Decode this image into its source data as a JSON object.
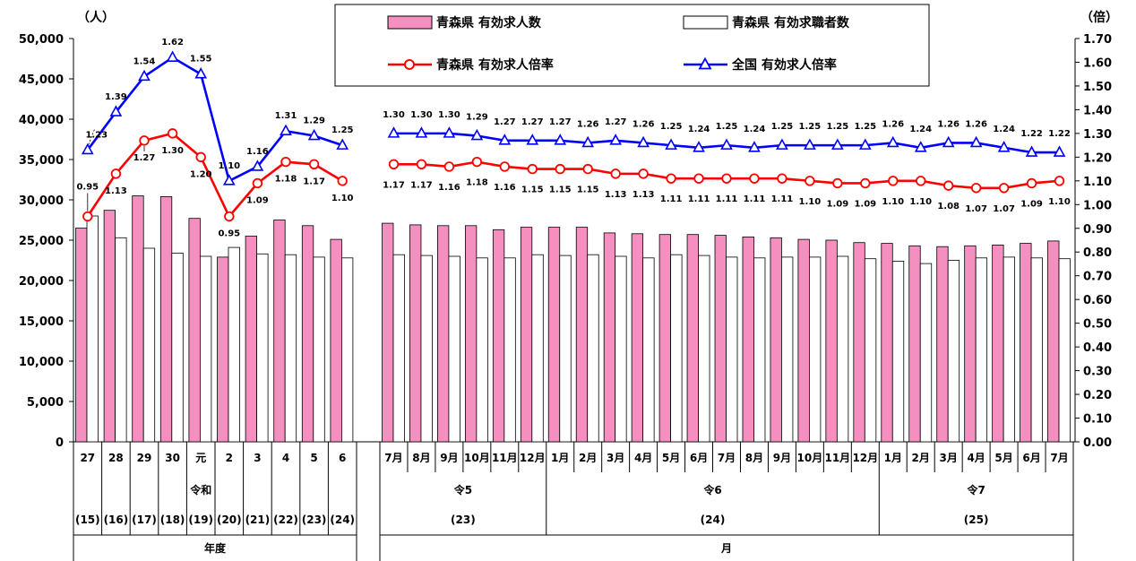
{
  "chart_data": {
    "type": "bar+line",
    "left_axis": {
      "unit": "（人）",
      "min": 0,
      "max": 50000,
      "step": 5000,
      "ticks": [
        "0",
        "5,000",
        "10,000",
        "15,000",
        "20,000",
        "25,000",
        "30,000",
        "35,000",
        "40,000",
        "45,000",
        "50,000"
      ]
    },
    "right_axis": {
      "unit": "（倍）",
      "min": 0,
      "max": 1.7,
      "step": 0.1,
      "ticks": [
        "0.00",
        "0.10",
        "0.20",
        "0.30",
        "0.40",
        "0.50",
        "0.60",
        "0.70",
        "0.80",
        "0.90",
        "1.00",
        "1.10",
        "1.20",
        "1.30",
        "1.40",
        "1.50",
        "1.60",
        "1.70"
      ]
    },
    "legend": {
      "openings": "青森県 有効求人数",
      "seekers": "青森県 有効求職者数",
      "ratio_aomori": "青森県 有効求人倍率",
      "ratio_national": "全国 有効求人倍率"
    },
    "colors": {
      "openings": "#f48fbf",
      "aomori_line": "#ff0000",
      "national_line": "#0000ff"
    },
    "annual": {
      "labels": [
        "27",
        "28",
        "29",
        "30",
        "元",
        "2",
        "3",
        "4",
        "5",
        "6"
      ],
      "eras": [
        "(15)",
        "(16)",
        "(17)",
        "(18)",
        "(19)",
        "(20)",
        "(21)",
        "(22)",
        "(23)",
        "(24)"
      ],
      "reiwa_label": "令和",
      "group_label": "年度",
      "openings": [
        26500,
        28700,
        30500,
        30400,
        27700,
        22900,
        25500,
        27500,
        26800,
        25100
      ],
      "seekers": [
        28000,
        25300,
        24000,
        23400,
        23000,
        24100,
        23300,
        23200,
        22900,
        22800
      ],
      "ratio_aomori": [
        0.95,
        1.13,
        1.27,
        1.3,
        1.2,
        0.95,
        1.09,
        1.18,
        1.17,
        1.1
      ],
      "ratio_national": [
        1.23,
        1.39,
        1.54,
        1.62,
        1.55,
        1.1,
        1.16,
        1.31,
        1.29,
        1.25
      ]
    },
    "monthly": {
      "labels": [
        "7月",
        "8月",
        "9月",
        "10月",
        "11月",
        "12月",
        "1月",
        "2月",
        "3月",
        "4月",
        "5月",
        "6月",
        "7月",
        "8月",
        "9月",
        "10月",
        "11月",
        "12月",
        "1月",
        "2月",
        "3月",
        "4月",
        "5月",
        "6月",
        "7月"
      ],
      "years": [
        {
          "label": "令5",
          "sub": "(23)"
        },
        {
          "label": "令6",
          "sub": "(24)"
        },
        {
          "label": "令7",
          "sub": "(25)"
        }
      ],
      "group_label": "月",
      "openings": [
        27100,
        26900,
        26800,
        26800,
        26300,
        26600,
        26600,
        26600,
        25900,
        25800,
        25700,
        25700,
        25600,
        25400,
        25300,
        25100,
        25000,
        24700,
        24600,
        24300,
        24200,
        24300,
        24400,
        24600,
        24900
      ],
      "seekers": [
        23200,
        23100,
        23000,
        22800,
        22800,
        23200,
        23100,
        23200,
        23000,
        22800,
        23200,
        23100,
        22900,
        22800,
        22900,
        22900,
        23000,
        22700,
        22400,
        22100,
        22500,
        22800,
        22900,
        22800,
        22700
      ],
      "ratio_aomori": [
        1.17,
        1.17,
        1.16,
        1.18,
        1.16,
        1.15,
        1.15,
        1.15,
        1.13,
        1.13,
        1.11,
        1.11,
        1.11,
        1.11,
        1.11,
        1.1,
        1.09,
        1.09,
        1.1,
        1.1,
        1.08,
        1.07,
        1.07,
        1.09,
        1.1
      ],
      "ratio_national": [
        1.3,
        1.3,
        1.3,
        1.29,
        1.27,
        1.27,
        1.27,
        1.26,
        1.27,
        1.26,
        1.25,
        1.24,
        1.25,
        1.24,
        1.25,
        1.25,
        1.25,
        1.25,
        1.26,
        1.24,
        1.26,
        1.26,
        1.24,
        1.22,
        1.22
      ]
    }
  }
}
